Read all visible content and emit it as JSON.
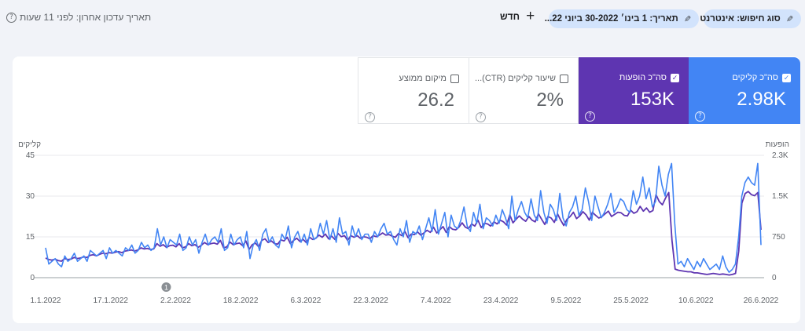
{
  "topbar": {
    "last_updated": "תאריך עדכון אחרון: לפני 11 שעות",
    "new_label": "חדש",
    "date_filter": "תאריך: 1 בינו׳ 30-2022 ביוני 22...",
    "search_type_filter": "סוג חיפוש: אינטרנט"
  },
  "metrics": [
    {
      "label": "סה\"כ קליקים",
      "value": "2.98K",
      "checked": true,
      "color": "#4285f4"
    },
    {
      "label": "סה\"כ הופעות",
      "value": "153K",
      "checked": true,
      "color": "#5e35b1"
    },
    {
      "label": "שיעור קליקים (CTR)...",
      "value": "2%",
      "checked": false
    },
    {
      "label": "מיקום ממוצע",
      "value": "26.2",
      "checked": false
    }
  ],
  "chart_data": {
    "type": "line",
    "left_axis": {
      "label": "קליקים",
      "ticks": [
        "45",
        "30",
        "15",
        "0"
      ],
      "range": [
        0,
        45
      ]
    },
    "right_axis": {
      "label": "הופעות",
      "ticks": [
        "2.3K",
        "1.5K",
        "750",
        "0"
      ],
      "range": [
        0,
        2300
      ]
    },
    "x_ticks": [
      "1.1.2022",
      "17.1.2022",
      "2.2.2022",
      "18.2.2022",
      "6.3.2022",
      "22.3.2022",
      "7.4.2022",
      "23.4.2022",
      "9.5.2022",
      "25.5.2022",
      "10.6.2022",
      "26.6.2022"
    ],
    "annotation": "1",
    "annotation_date": "2.2.2022",
    "series": [
      {
        "name": "קליקים",
        "color": "#4285f4",
        "axis": "left",
        "values": [
          11,
          5,
          6,
          7,
          5,
          4,
          8,
          6,
          7,
          9,
          6,
          7,
          8,
          6,
          10,
          9,
          8,
          9,
          10,
          7,
          11,
          9,
          10,
          9,
          8,
          11,
          10,
          12,
          9,
          10,
          13,
          11,
          12,
          10,
          11,
          18,
          12,
          15,
          11,
          14,
          13,
          12,
          16,
          10,
          11,
          15,
          12,
          14,
          9,
          13,
          16,
          12,
          14,
          15,
          13,
          18,
          10,
          11,
          16,
          12,
          14,
          15,
          11,
          17,
          7,
          12,
          14,
          10,
          16,
          18,
          13,
          15,
          12,
          11,
          16,
          14,
          19,
          11,
          15,
          17,
          13,
          16,
          12,
          18,
          14,
          15,
          20,
          16,
          21,
          14,
          18,
          13,
          22,
          16,
          17,
          12,
          19,
          15,
          18,
          14,
          16,
          16,
          13,
          17,
          15,
          18,
          20,
          16,
          17,
          14,
          12,
          18,
          15,
          21,
          13,
          17,
          16,
          19,
          14,
          18,
          22,
          17,
          25,
          16,
          20,
          24,
          15,
          23,
          19,
          18,
          21,
          26,
          19,
          17,
          24,
          20,
          27,
          18,
          22,
          21,
          19,
          23,
          20,
          25,
          22,
          18,
          30,
          21,
          25,
          28,
          24,
          22,
          29,
          23,
          21,
          32,
          24,
          20,
          27,
          25,
          21,
          31,
          22,
          19,
          24,
          26,
          30,
          23,
          25,
          33,
          28,
          21,
          30,
          26,
          22,
          24,
          27,
          31,
          24,
          26,
          29,
          28,
          25,
          24,
          32,
          27,
          30,
          37,
          29,
          33,
          26,
          28,
          41,
          34,
          30,
          38,
          42,
          20,
          5,
          6,
          4,
          7,
          5,
          3,
          6,
          4,
          7,
          5,
          3,
          4,
          5,
          3,
          8,
          4,
          2,
          3,
          5,
          15,
          30,
          35,
          37,
          35,
          34,
          42,
          12
        ]
      },
      {
        "name": "הופעות",
        "color": "#5e35b1",
        "axis": "right",
        "values": [
          370,
          340,
          330,
          350,
          320,
          310,
          360,
          340,
          350,
          380,
          360,
          370,
          390,
          380,
          420,
          430,
          410,
          440,
          460,
          450,
          470,
          460,
          480,
          490,
          470,
          500,
          510,
          520,
          500,
          520,
          560,
          540,
          550,
          530,
          540,
          640,
          590,
          620,
          570,
          600,
          610,
          580,
          640,
          560,
          580,
          640,
          600,
          620,
          570,
          610,
          660,
          620,
          640,
          650,
          630,
          700,
          560,
          580,
          670,
          620,
          640,
          650,
          600,
          690,
          530,
          620,
          650,
          580,
          700,
          730,
          660,
          690,
          640,
          630,
          710,
          690,
          760,
          640,
          700,
          740,
          680,
          720,
          660,
          760,
          720,
          740,
          800,
          760,
          820,
          730,
          780,
          720,
          830,
          770,
          790,
          700,
          790,
          760,
          790,
          740,
          770,
          760,
          730,
          790,
          770,
          800,
          840,
          800,
          810,
          780,
          760,
          830,
          790,
          870,
          750,
          820,
          810,
          860,
          800,
          840,
          890,
          850,
          950,
          840,
          900,
          960,
          850,
          960,
          910,
          900,
          950,
          1030,
          950,
          920,
          1010,
          970,
          1080,
          940,
          1020,
          1010,
          970,
          1050,
          1010,
          1080,
          1050,
          990,
          1180,
          1030,
          1100,
          1160,
          1100,
          1060,
          1150,
          1080,
          1050,
          1200,
          1100,
          1000,
          1150,
          1120,
          1040,
          1200,
          1080,
          980,
          1100,
          1150,
          1230,
          1110,
          1160,
          1240,
          1180,
          1080,
          1230,
          1170,
          1120,
          1150,
          1200,
          1250,
          1150,
          1190,
          1230,
          1220,
          1170,
          1160,
          1270,
          1210,
          1240,
          1340,
          1250,
          1310,
          1230,
          1260,
          1560,
          1430,
          1370,
          1500,
          1600,
          700,
          160,
          140,
          130,
          120,
          110,
          110,
          90,
          90,
          80,
          70,
          60,
          70,
          80,
          70,
          60,
          70,
          60,
          50,
          60,
          80,
          500,
          1400,
          1580,
          1620,
          1560,
          1540,
          1600,
          900
        ]
      }
    ]
  }
}
